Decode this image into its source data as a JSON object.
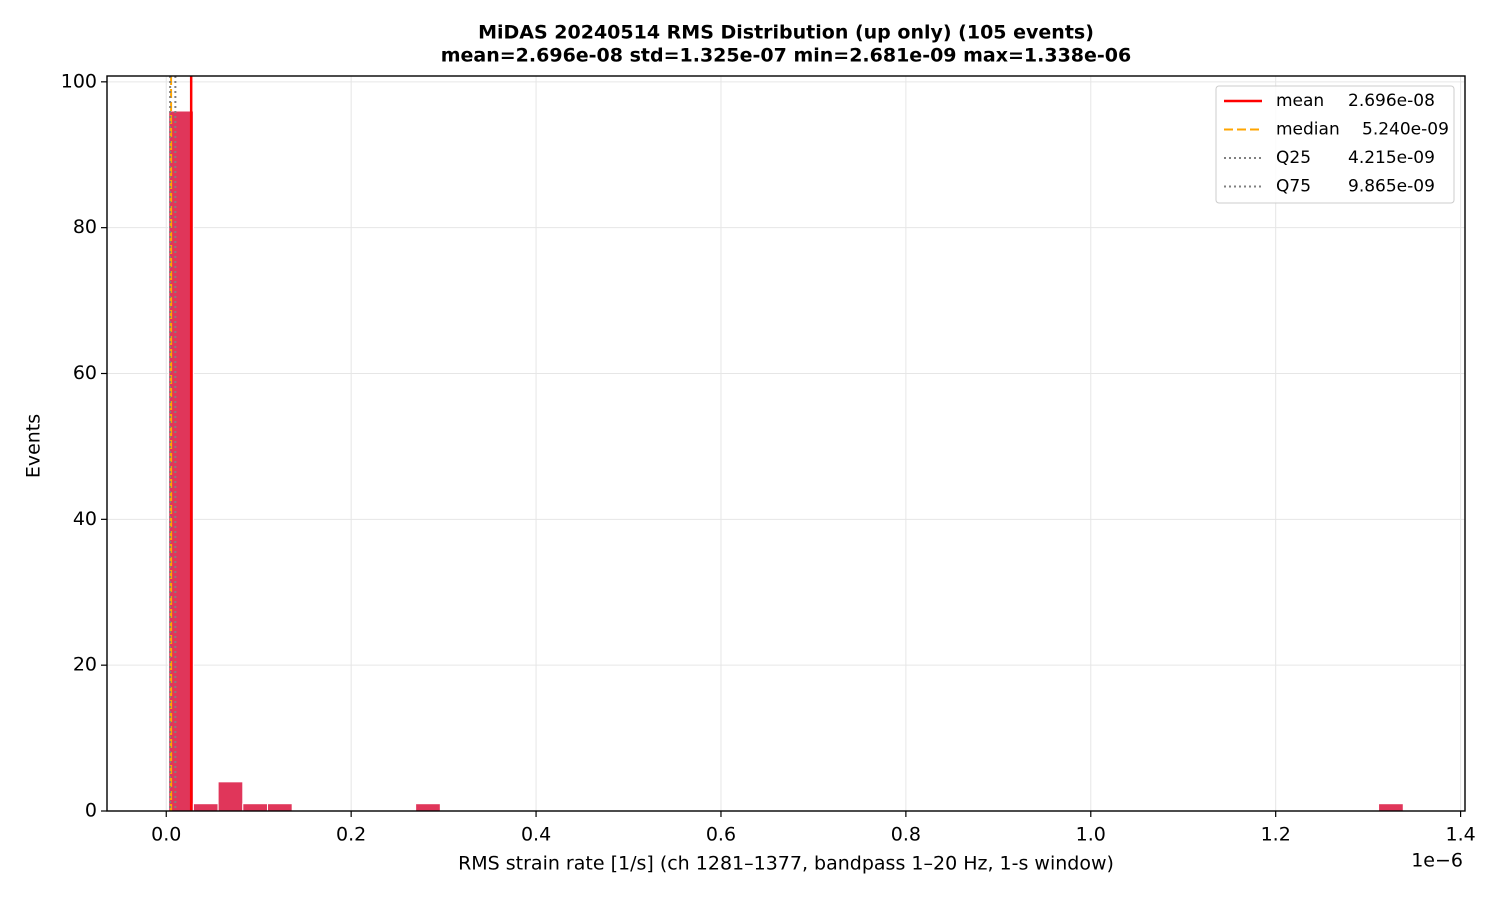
{
  "chart_data": {
    "type": "histogram",
    "title": "MiDAS 20240514  RMS Distribution  (up only)  (105 events)",
    "subtitle": "mean=2.696e-08  std=1.325e-07  min=2.681e-09  max=1.338e-06",
    "x_label": "RMS strain rate [1/s]  (ch 1281–1377, bandpass 1–20 Hz, 1-s window)",
    "y_label": "Events",
    "x_offset_label": "1e−6",
    "color": "#e0365a",
    "bins": [
      2.681e-09,
      2.9387e-08,
      5.6093e-08,
      8.2799e-08,
      1.09505e-07,
      1.36211e-07,
      1.62917e-07,
      1.89623e-07,
      2.16329e-07,
      2.43035e-07,
      2.69741e-07,
      2.96447e-07,
      3.23153e-07,
      3.49859e-07,
      3.76565e-07,
      4.03271e-07,
      4.29977e-07,
      4.56683e-07,
      4.83389e-07,
      5.10095e-07,
      5.36801e-07,
      5.63507e-07,
      5.90213e-07,
      6.16919e-07,
      6.43625e-07,
      6.70331e-07,
      6.97037e-07,
      7.23743e-07,
      7.50449e-07,
      7.77155e-07,
      8.03861e-07,
      8.30567e-07,
      8.57273e-07,
      8.83979e-07,
      9.10685e-07,
      9.37391e-07,
      9.64097e-07,
      9.90803e-07,
      1.017509e-06,
      1.044215e-06,
      1.070921e-06,
      1.097627e-06,
      1.124333e-06,
      1.151039e-06,
      1.177745e-06,
      1.204451e-06,
      1.231157e-06,
      1.257863e-06,
      1.284569e-06,
      1.311275e-06,
      1.338e-06
    ],
    "values": [
      96,
      1,
      4,
      1,
      1,
      0,
      0,
      0,
      0,
      0,
      1,
      0,
      0,
      0,
      0,
      0,
      0,
      0,
      0,
      0,
      0,
      0,
      0,
      0,
      0,
      0,
      0,
      0,
      0,
      0,
      0,
      0,
      0,
      0,
      0,
      0,
      0,
      0,
      0,
      0,
      0,
      0,
      0,
      0,
      0,
      0,
      0,
      0,
      0,
      1
    ],
    "lines": [
      {
        "name": "mean",
        "value": 2.696e-08,
        "value_label": "2.696e-08",
        "color": "#ff0000",
        "style": "solid"
      },
      {
        "name": "median",
        "value": 5.24e-09,
        "value_label": "5.240e-09",
        "color": "#ffa500",
        "style": "dashed"
      },
      {
        "name": "Q25",
        "value": 4.215e-09,
        "value_label": "4.215e-09",
        "color": "#808080",
        "style": "dotted"
      },
      {
        "name": "Q75",
        "value": 9.865e-09,
        "value_label": "9.865e-09",
        "color": "#808080",
        "style": "dotted"
      }
    ],
    "xlim": [
      -6.4084e-08,
      1.404765e-06
    ],
    "ylim": [
      0,
      100.8
    ],
    "xticks": [
      {
        "value": 0,
        "label": "0.0"
      },
      {
        "value": 2e-07,
        "label": "0.2"
      },
      {
        "value": 4e-07,
        "label": "0.4"
      },
      {
        "value": 6e-07,
        "label": "0.6"
      },
      {
        "value": 8e-07,
        "label": "0.8"
      },
      {
        "value": 1e-06,
        "label": "1.0"
      },
      {
        "value": 1.2e-06,
        "label": "1.2"
      },
      {
        "value": 1.4e-06,
        "label": "1.4"
      }
    ],
    "yticks": [
      0,
      20,
      40,
      60,
      80,
      100
    ],
    "grid": true,
    "legend": "upper right"
  }
}
